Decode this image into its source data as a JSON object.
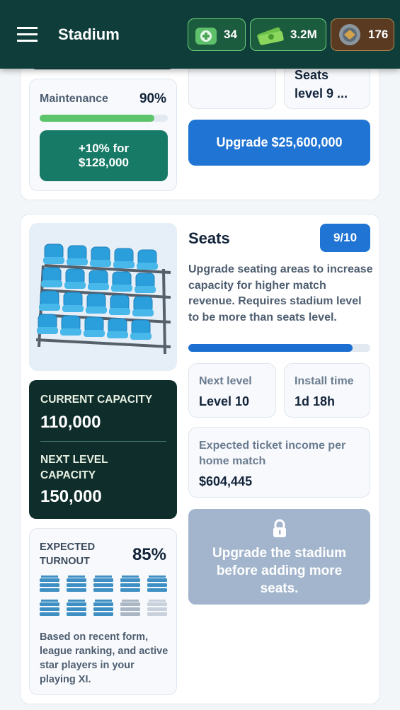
{
  "header": {
    "title": "Stadium",
    "resources": [
      "34",
      "3.2M",
      "176"
    ]
  },
  "top_card": {
    "seats_box": "Seats level 9 ...",
    "maintenance": {
      "label": "Maintenance",
      "value": "90%",
      "button": "+10% for $128,000"
    },
    "upgrade_button": "Upgrade $25,600,000"
  },
  "seats_card": {
    "title": "Seats",
    "level_badge": "9/10",
    "description": "Upgrade seating areas to increase capacity for higher match revenue. Requires stadium level to be more than seats level.",
    "capacity": {
      "current_label": "CURRENT CAPACITY",
      "current_value": "110,000",
      "next_label": "NEXT LEVEL CAPACITY",
      "next_value": "150,000"
    },
    "turnout": {
      "label": "EXPECTED TURNOUT",
      "value": "85%",
      "note": "Based on recent form, league ranking, and active star players in your playing XI."
    },
    "next_level": {
      "label": "Next level",
      "value": "Level 10"
    },
    "install_time": {
      "label": "Install time",
      "value": "1d 18h"
    },
    "ticket_income": {
      "label": "Expected ticket income per home match",
      "value": "$604,445"
    },
    "locked_button": "Upgrade the stadium before adding more seats."
  }
}
